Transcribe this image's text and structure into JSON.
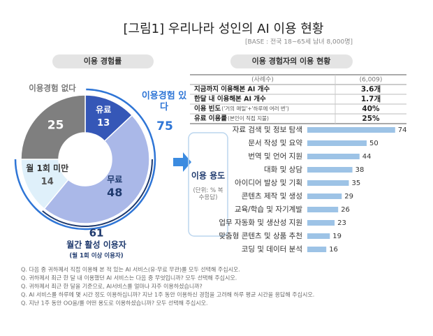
{
  "title": "[그림1] 우리나라 성인의 AI 이용 현황",
  "subtitle": "[BASE : 전국 18~65세 남녀 8,000명]",
  "chart_data": [
    {
      "type": "donut",
      "title": "이용 경험률",
      "categories": [
        "유료",
        "무료",
        "월 1회 미만",
        "이용경험 없다"
      ],
      "values": [
        13,
        48,
        14,
        25
      ],
      "colors": [
        "#3557b7",
        "#aab8e8",
        "#dff0fa",
        "#7f7f7f"
      ],
      "groups": [
        {
          "label": "이용경험 있다",
          "value": 75,
          "color": "#2e75d6"
        },
        {
          "value": 61,
          "label": "월간 활성 이용자",
          "note": "(월 1회 이상 이용자)",
          "color": "#1f3a6e"
        }
      ]
    },
    {
      "type": "bar",
      "orientation": "horizontal",
      "y_label": "이용 용도",
      "unit_note": "(단위: % 복수응답)",
      "categories": [
        "자료 검색 및 정보 탐색",
        "문서 작성 및 요약",
        "번역 및 언어 지원",
        "대화 및 상담",
        "아이디어 발상 및 기획",
        "콘텐츠 제작 및 생성",
        "교육/학습 및 자기계발",
        "업무 자동화 및 생산성 지원",
        "맞춤형 콘텐츠 및 상품 추천",
        "코딩 및 데이터 분석"
      ],
      "values": [
        74,
        50,
        44,
        38,
        35,
        29,
        26,
        23,
        19,
        16
      ],
      "color": "#9dc3e6",
      "xlim": [
        0,
        80
      ]
    }
  ],
  "table": {
    "title": "이용 경험자의 이용 현황",
    "header": [
      "(사례수)",
      "(6,009)"
    ],
    "rows": [
      {
        "label": "지금까지 이용해본 AI 개수",
        "value": "3.6개"
      },
      {
        "label": "한달 내 이용해본 AI 개수",
        "value": "1.7개"
      },
      {
        "label": "이용 빈도",
        "note": "('거의 매일'+'하루에 여러 번')",
        "value": "40%"
      },
      {
        "label": "유료 이용률",
        "note": "(본인이 직접 지불)",
        "value": "25%"
      }
    ]
  },
  "notes": [
    "Q. 다음 중 귀하께서 직접 이용해 본 적 있는 AI 서비스(유·무료 무관)를 모두 선택해 주십시오.",
    "Q. 귀하께서 최근 한 달 내 이용했던 AI 서비스는 다음 중 무엇입니까? 모두 선택해 주십시오.",
    "Q. 귀하께서 최근 한 달을 기준으로, AI서비스를 얼마나 자주 이용하셨습니까?",
    "Q. AI 서비스를 하루에 몇 시간 정도 이용하십니까? 지난 1주 동안 이용하신 경험을 고려해 하루 평균 시간을 응답해 주십시오.",
    "Q. 지난 1주 동안 OO을/를 어떤 용도로 이용하셨습니까? 모두 선택해 주십시오."
  ]
}
